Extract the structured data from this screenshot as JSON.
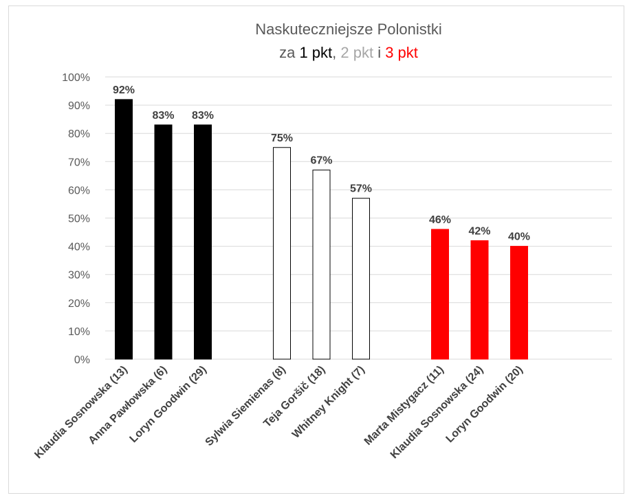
{
  "chart_data": {
    "type": "bar",
    "title": "Naskuteczniejsze Polonistki",
    "subtitle_parts": [
      {
        "text": "za ",
        "color": "#595959"
      },
      {
        "text": "1 pkt",
        "color": "#000000"
      },
      {
        "text": ", ",
        "color": "#595959"
      },
      {
        "text": "2 pkt",
        "color": "#a6a6a6"
      },
      {
        "text": " i ",
        "color": "#595959"
      },
      {
        "text": "3 pkt",
        "color": "#ff0000"
      }
    ],
    "ylim": [
      0,
      100
    ],
    "y_ticks": [
      "0%",
      "10%",
      "20%",
      "30%",
      "40%",
      "50%",
      "60%",
      "70%",
      "80%",
      "90%",
      "100%"
    ],
    "grid": true,
    "groups": [
      {
        "name": "1 pkt",
        "fill": "#000000",
        "stroke": "#000000",
        "bars": [
          {
            "category": "Klaudia Sosnowska (13)",
            "value": 92,
            "label": "92%"
          },
          {
            "category": "Anna Pawłowska (6)",
            "value": 83,
            "label": "83%"
          },
          {
            "category": "Loryn Goodwin (29)",
            "value": 83,
            "label": "83%"
          }
        ]
      },
      {
        "name": "2 pkt",
        "fill": "#ffffff",
        "stroke": "#000000",
        "bars": [
          {
            "category": "Sylwia Siemienas (8)",
            "value": 75,
            "label": "75%"
          },
          {
            "category": "Teja Goršič (18)",
            "value": 67,
            "label": "67%"
          },
          {
            "category": "Whitney Knight (7)",
            "value": 57,
            "label": "57%"
          }
        ]
      },
      {
        "name": "3 pkt",
        "fill": "#ff0000",
        "stroke": "#ff0000",
        "bars": [
          {
            "category": "Marta Mistygacz (11)",
            "value": 46,
            "label": "46%"
          },
          {
            "category": "Klaudia Sosnowska (24)",
            "value": 42,
            "label": "42%"
          },
          {
            "category": "Loryn Goodwin (20)",
            "value": 40,
            "label": "40%"
          }
        ]
      }
    ]
  }
}
